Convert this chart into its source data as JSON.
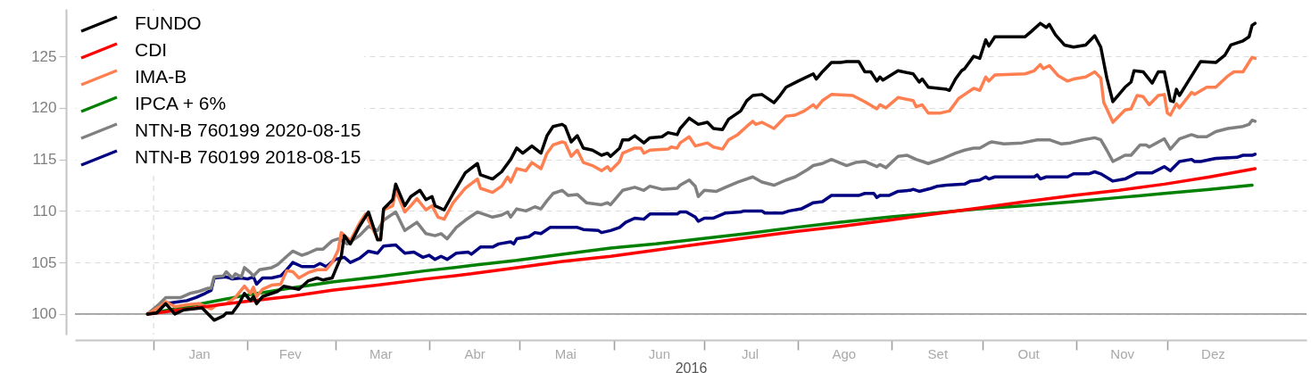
{
  "chart_data": {
    "type": "line",
    "xlabel": "2016",
    "xlim": [
      "2015-12-06",
      "2017-01-16"
    ],
    "xticks": [
      {
        "value": "2016-01-01",
        "label": null
      },
      {
        "value": "2016-01-16",
        "label": "Jan"
      },
      {
        "value": "2016-02-01",
        "label": null
      },
      {
        "value": "2016-02-15",
        "label": "Fev"
      },
      {
        "value": "2016-03-01",
        "label": null
      },
      {
        "value": "2016-03-16",
        "label": "Mar"
      },
      {
        "value": "2016-04-01",
        "label": null
      },
      {
        "value": "2016-04-16",
        "label": "Abr"
      },
      {
        "value": "2016-05-01",
        "label": null
      },
      {
        "value": "2016-05-16",
        "label": "Mai"
      },
      {
        "value": "2016-06-01",
        "label": null
      },
      {
        "value": "2016-06-16",
        "label": "Jun"
      },
      {
        "value": "2016-07-01",
        "label": null
      },
      {
        "value": "2016-07-16",
        "label": "Jul"
      },
      {
        "value": "2016-08-01",
        "label": null
      },
      {
        "value": "2016-08-16",
        "label": "Ago"
      },
      {
        "value": "2016-09-01",
        "label": null
      },
      {
        "value": "2016-09-16",
        "label": "Set"
      },
      {
        "value": "2016-10-01",
        "label": null
      },
      {
        "value": "2016-10-16",
        "label": "Out"
      },
      {
        "value": "2016-11-01",
        "label": null
      },
      {
        "value": "2016-11-16",
        "label": "Nov"
      },
      {
        "value": "2016-12-01",
        "label": null
      },
      {
        "value": "2016-12-16",
        "label": "Dez"
      }
    ],
    "ylim": [
      98,
      129.6
    ],
    "yticks": [
      100,
      105,
      110,
      115,
      120,
      125
    ],
    "grid": "y",
    "legend": "top left",
    "ref_lines": [
      {
        "axis": "y",
        "value": 100,
        "color": "#a0a0a0"
      },
      {
        "axis": "x",
        "value": "2016-01-01",
        "color": "#dddddd",
        "line_style": "dashed"
      }
    ],
    "series": [
      {
        "name": "FUNDO",
        "color": "#000000",
        "x": [
          "2015-12-30",
          "2016-01-02",
          "2016-01-05",
          "2016-01-08",
          "2016-01-11",
          "2016-01-17",
          "2016-01-21",
          "2016-01-24",
          "2016-01-25",
          "2016-01-27",
          "2016-01-29",
          "2016-01-31",
          "2016-02-02",
          "2016-02-03",
          "2016-02-04",
          "2016-02-06",
          "2016-02-11",
          "2016-02-13",
          "2016-02-18",
          "2016-02-21",
          "2016-02-24",
          "2016-02-26",
          "2016-02-29",
          "2016-03-01",
          "2016-03-03",
          "2016-03-04",
          "2016-03-06",
          "2016-03-09",
          "2016-03-12",
          "2016-03-15",
          "2016-03-16",
          "2016-03-17",
          "2016-03-20",
          "2016-03-21",
          "2016-03-24",
          "2016-03-26",
          "2016-03-29",
          "2016-03-31",
          "2016-04-02",
          "2016-04-03",
          "2016-04-06",
          "2016-04-09",
          "2016-04-13",
          "2016-04-17",
          "2016-04-18",
          "2016-04-22",
          "2016-04-25",
          "2016-04-28",
          "2016-04-30",
          "2016-05-02",
          "2016-05-05",
          "2016-05-08",
          "2016-05-10",
          "2016-05-12",
          "2016-05-15",
          "2016-05-16",
          "2016-05-18",
          "2016-05-20",
          "2016-05-22",
          "2016-05-25",
          "2016-05-28",
          "2016-05-30",
          "2016-05-31",
          "2016-06-03",
          "2016-06-04",
          "2016-06-06",
          "2016-06-08",
          "2016-06-11",
          "2016-06-13",
          "2016-06-17",
          "2016-06-19",
          "2016-06-22",
          "2016-06-23",
          "2016-06-26",
          "2016-06-29",
          "2016-07-02",
          "2016-07-04",
          "2016-07-07",
          "2016-07-09",
          "2016-07-13",
          "2016-07-15",
          "2016-07-17",
          "2016-07-20",
          "2016-07-24",
          "2016-07-26",
          "2016-07-28",
          "2016-08-01",
          "2016-08-06",
          "2016-08-07",
          "2016-08-09",
          "2016-08-12",
          "2016-08-15",
          "2016-08-17",
          "2016-08-21",
          "2016-08-23",
          "2016-08-25",
          "2016-08-27",
          "2016-08-28",
          "2016-08-29",
          "2016-09-03",
          "2016-09-08",
          "2016-09-10",
          "2016-09-11",
          "2016-09-13",
          "2016-09-19",
          "2016-09-20",
          "2016-09-22",
          "2016-09-24",
          "2016-09-25",
          "2016-09-28",
          "2016-09-30",
          "2016-10-02",
          "2016-10-03",
          "2016-10-05",
          "2016-10-15",
          "2016-10-17",
          "2016-10-20",
          "2016-10-22",
          "2016-10-23",
          "2016-10-25",
          "2016-10-28",
          "2016-10-31",
          "2016-11-04",
          "2016-11-07",
          "2016-11-09",
          "2016-11-11",
          "2016-11-13",
          "2016-11-17",
          "2016-11-19",
          "2016-11-20",
          "2016-11-23",
          "2016-11-26",
          "2016-11-28",
          "2016-11-30",
          "2016-12-02",
          "2016-12-03",
          "2016-12-04",
          "2016-12-05",
          "2016-12-09",
          "2016-12-12",
          "2016-12-17",
          "2016-12-20",
          "2016-12-22",
          "2016-12-26",
          "2016-12-28",
          "2016-12-29",
          "2016-12-30"
        ],
        "values": [
          100.0,
          100.1,
          101.0,
          100.0,
          100.4,
          100.6,
          99.4,
          99.8,
          100.1,
          100.1,
          100.9,
          102.0,
          101.3,
          101.7,
          101.0,
          101.7,
          102.2,
          102.7,
          102.4,
          103.2,
          103.5,
          103.3,
          103.5,
          104.2,
          105.6,
          107.6,
          106.8,
          108.5,
          109.9,
          107.2,
          107.2,
          110.2,
          111.1,
          112.6,
          110.5,
          111.4,
          112.0,
          111.1,
          111.4,
          110.5,
          110.1,
          111.7,
          113.7,
          114.6,
          113.5,
          113.1,
          113.8,
          115.0,
          116.1,
          115.6,
          116.3,
          115.6,
          117.3,
          118.2,
          118.4,
          118.2,
          116.7,
          117.3,
          116.1,
          115.9,
          115.4,
          115.6,
          115.3,
          116.1,
          116.9,
          116.9,
          117.3,
          116.6,
          117.1,
          117.2,
          117.6,
          117.4,
          118.0,
          119.0,
          118.4,
          118.6,
          118.0,
          117.9,
          118.9,
          119.7,
          120.7,
          121.2,
          121.3,
          120.5,
          121.2,
          122.0,
          122.6,
          123.3,
          122.8,
          123.5,
          124.4,
          124.4,
          124.5,
          124.5,
          123.5,
          123.5,
          122.6,
          123.0,
          122.7,
          123.6,
          123.3,
          122.5,
          122.8,
          122.0,
          121.8,
          121.7,
          122.8,
          123.6,
          123.8,
          125.0,
          124.8,
          126.6,
          126.0,
          126.9,
          126.9,
          127.4,
          128.2,
          127.8,
          128.1,
          127.1,
          126.1,
          125.9,
          126.1,
          127.0,
          125.9,
          122.9,
          120.6,
          122.0,
          122.5,
          123.6,
          123.5,
          122.4,
          123.5,
          123.5,
          120.7,
          120.6,
          121.8,
          121.2,
          123.1,
          124.5,
          124.4,
          125.1,
          126.1,
          126.5,
          126.9,
          128.0,
          128.2
        ]
      },
      {
        "name": "CDI",
        "color": "#ff0000",
        "x": [
          "2015-12-30",
          "2016-01-15",
          "2016-01-31",
          "2016-02-15",
          "2016-02-29",
          "2016-03-15",
          "2016-03-31",
          "2016-04-15",
          "2016-04-30",
          "2016-05-15",
          "2016-05-31",
          "2016-06-15",
          "2016-06-30",
          "2016-07-15",
          "2016-07-31",
          "2016-08-15",
          "2016-08-31",
          "2016-09-15",
          "2016-09-30",
          "2016-10-15",
          "2016-10-31",
          "2016-11-15",
          "2016-11-30",
          "2016-12-15",
          "2016-12-30"
        ],
        "values": [
          100.0,
          100.6,
          101.2,
          101.7,
          102.3,
          102.8,
          103.4,
          103.9,
          104.5,
          105.1,
          105.6,
          106.2,
          106.8,
          107.4,
          108.0,
          108.5,
          109.1,
          109.7,
          110.3,
          110.9,
          111.5,
          112.0,
          112.6,
          113.3,
          114.1
        ]
      },
      {
        "name": "IMA-B",
        "color": "#ff7f50",
        "x": [
          "2015-12-30",
          "2016-01-03",
          "2016-01-05",
          "2016-01-08",
          "2016-01-12",
          "2016-01-16",
          "2016-01-20",
          "2016-01-22",
          "2016-01-25",
          "2016-01-28",
          "2016-01-31",
          "2016-02-02",
          "2016-02-03",
          "2016-02-04",
          "2016-02-06",
          "2016-02-09",
          "2016-02-12",
          "2016-02-14",
          "2016-02-16",
          "2016-02-18",
          "2016-02-21",
          "2016-02-24",
          "2016-02-27",
          "2016-02-29",
          "2016-03-02",
          "2016-03-03",
          "2016-03-06",
          "2016-03-09",
          "2016-03-11",
          "2016-03-15",
          "2016-03-16",
          "2016-03-17",
          "2016-03-20",
          "2016-03-21",
          "2016-03-24",
          "2016-03-26",
          "2016-03-28",
          "2016-03-31",
          "2016-04-02",
          "2016-04-04",
          "2016-04-06",
          "2016-04-09",
          "2016-04-13",
          "2016-04-17",
          "2016-04-18",
          "2016-04-22",
          "2016-04-25",
          "2016-04-27",
          "2016-04-28",
          "2016-04-30",
          "2016-05-03",
          "2016-05-05",
          "2016-05-08",
          "2016-05-10",
          "2016-05-12",
          "2016-05-15",
          "2016-05-16",
          "2016-05-18",
          "2016-05-20",
          "2016-05-22",
          "2016-05-25",
          "2016-05-28",
          "2016-05-30",
          "2016-05-31",
          "2016-06-03",
          "2016-06-04",
          "2016-06-08",
          "2016-06-10",
          "2016-06-11",
          "2016-06-13",
          "2016-06-19",
          "2016-06-20",
          "2016-06-22",
          "2016-06-23",
          "2016-06-26",
          "2016-06-28",
          "2016-07-02",
          "2016-07-04",
          "2016-07-07",
          "2016-07-09",
          "2016-07-12",
          "2016-07-15",
          "2016-07-17",
          "2016-07-18",
          "2016-07-20",
          "2016-07-24",
          "2016-07-26",
          "2016-07-28",
          "2016-07-31",
          "2016-08-03",
          "2016-08-06",
          "2016-08-07",
          "2016-08-09",
          "2016-08-12",
          "2016-08-19",
          "2016-08-23",
          "2016-08-27",
          "2016-08-28",
          "2016-08-30",
          "2016-09-03",
          "2016-09-08",
          "2016-09-09",
          "2016-09-11",
          "2016-09-13",
          "2016-09-17",
          "2016-09-20",
          "2016-09-23",
          "2016-09-25",
          "2016-09-28",
          "2016-09-30",
          "2016-10-02",
          "2016-10-03",
          "2016-10-05",
          "2016-10-15",
          "2016-10-18",
          "2016-10-20",
          "2016-10-21",
          "2016-10-23",
          "2016-10-26",
          "2016-10-29",
          "2016-10-31",
          "2016-11-04",
          "2016-11-07",
          "2016-11-09",
          "2016-11-10",
          "2016-11-11",
          "2016-11-13",
          "2016-11-17",
          "2016-11-19",
          "2016-11-21",
          "2016-11-23",
          "2016-11-25",
          "2016-11-28",
          "2016-11-30",
          "2016-12-01",
          "2016-12-02",
          "2016-12-04",
          "2016-12-05",
          "2016-12-09",
          "2016-12-10",
          "2016-12-14",
          "2016-12-17",
          "2016-12-21",
          "2016-12-23",
          "2016-12-26",
          "2016-12-29",
          "2016-12-30"
        ],
        "values": [
          100.0,
          100.7,
          101.2,
          100.7,
          100.9,
          101.0,
          100.5,
          100.9,
          101.0,
          101.6,
          102.7,
          102.0,
          102.6,
          101.7,
          102.4,
          102.8,
          102.9,
          104.2,
          104.1,
          103.5,
          104.0,
          104.3,
          104.3,
          105.0,
          106.2,
          107.9,
          107.1,
          108.8,
          109.7,
          107.3,
          107.3,
          110.1,
          110.5,
          112.0,
          109.9,
          110.5,
          111.2,
          110.1,
          110.5,
          109.4,
          109.2,
          110.8,
          112.2,
          113.1,
          112.2,
          111.8,
          112.4,
          113.3,
          112.8,
          114.1,
          113.9,
          114.7,
          114.1,
          115.6,
          116.4,
          116.7,
          116.6,
          115.3,
          115.9,
          114.7,
          114.4,
          113.9,
          114.3,
          113.9,
          114.8,
          115.6,
          116.1,
          116.1,
          115.6,
          115.9,
          116.0,
          116.2,
          116.1,
          116.6,
          117.2,
          116.3,
          116.6,
          116.2,
          116.0,
          116.9,
          117.4,
          118.2,
          118.7,
          118.4,
          118.6,
          118.0,
          118.6,
          119.2,
          119.3,
          119.7,
          120.3,
          120.0,
          120.7,
          121.3,
          121.2,
          120.6,
          119.9,
          120.3,
          120.0,
          121.0,
          120.7,
          120.1,
          120.3,
          119.5,
          119.5,
          119.7,
          120.9,
          121.3,
          121.9,
          121.7,
          123.0,
          122.6,
          123.2,
          123.3,
          123.6,
          124.2,
          123.8,
          124.1,
          123.1,
          122.6,
          122.8,
          123.0,
          123.5,
          122.9,
          120.5,
          119.9,
          118.6,
          119.8,
          119.9,
          121.2,
          121.1,
          120.3,
          121.2,
          121.3,
          119.5,
          119.3,
          120.4,
          120.0,
          121.5,
          121.3,
          122.0,
          122.0,
          123.1,
          123.5,
          123.5,
          124.9,
          124.8
        ]
      },
      {
        "name": "IPCA + 6%",
        "color": "#008000",
        "x": [
          "2015-12-30",
          "2016-01-15",
          "2016-01-31",
          "2016-02-15",
          "2016-02-29",
          "2016-03-15",
          "2016-03-31",
          "2016-04-15",
          "2016-04-30",
          "2016-05-15",
          "2016-05-31",
          "2016-06-15",
          "2016-06-30",
          "2016-07-15",
          "2016-07-31",
          "2016-08-15",
          "2016-08-31",
          "2016-09-15",
          "2016-09-30",
          "2016-10-15",
          "2016-10-31",
          "2016-11-15",
          "2016-11-30",
          "2016-12-15",
          "2016-12-29"
        ],
        "values": [
          100.0,
          100.9,
          101.8,
          102.5,
          103.1,
          103.6,
          104.2,
          104.7,
          105.2,
          105.8,
          106.4,
          106.8,
          107.3,
          107.8,
          108.4,
          108.9,
          109.4,
          109.8,
          110.2,
          110.5,
          110.9,
          111.3,
          111.7,
          112.1,
          112.5
        ]
      },
      {
        "name": "NTN-B 760199 2020-08-15",
        "color": "#808080",
        "x": [
          "2015-12-30",
          "2016-01-03",
          "2016-01-05",
          "2016-01-10",
          "2016-01-13",
          "2016-01-16",
          "2016-01-19",
          "2016-01-20",
          "2016-01-21",
          "2016-01-24",
          "2016-01-25",
          "2016-01-27",
          "2016-01-28",
          "2016-01-30",
          "2016-01-31",
          "2016-02-02",
          "2016-02-03",
          "2016-02-05",
          "2016-02-09",
          "2016-02-11",
          "2016-02-14",
          "2016-02-16",
          "2016-02-19",
          "2016-02-21",
          "2016-02-24",
          "2016-02-26",
          "2016-02-29",
          "2016-03-02",
          "2016-03-05",
          "2016-03-09",
          "2016-03-12",
          "2016-03-15",
          "2016-03-17",
          "2016-03-21",
          "2016-03-24",
          "2016-03-28",
          "2016-03-31",
          "2016-04-03",
          "2016-04-05",
          "2016-04-07",
          "2016-04-10",
          "2016-04-13",
          "2016-04-17",
          "2016-04-22",
          "2016-04-25",
          "2016-04-27",
          "2016-04-28",
          "2016-04-30",
          "2016-05-03",
          "2016-05-06",
          "2016-05-08",
          "2016-05-10",
          "2016-05-12",
          "2016-05-15",
          "2016-05-17",
          "2016-05-20",
          "2016-05-23",
          "2016-05-28",
          "2016-05-30",
          "2016-05-31",
          "2016-06-04",
          "2016-06-08",
          "2016-06-11",
          "2016-06-13",
          "2016-06-17",
          "2016-06-22",
          "2016-06-23",
          "2016-06-26",
          "2016-06-28",
          "2016-06-29",
          "2016-07-01",
          "2016-07-05",
          "2016-07-08",
          "2016-07-12",
          "2016-07-17",
          "2016-07-20",
          "2016-07-24",
          "2016-07-28",
          "2016-07-31",
          "2016-08-04",
          "2016-08-06",
          "2016-08-09",
          "2016-08-12",
          "2016-08-17",
          "2016-08-20",
          "2016-08-23",
          "2016-08-27",
          "2016-08-28",
          "2016-08-30",
          "2016-09-03",
          "2016-09-06",
          "2016-09-09",
          "2016-09-13",
          "2016-09-18",
          "2016-09-22",
          "2016-09-25",
          "2016-09-28",
          "2016-09-30",
          "2016-10-03",
          "2016-10-04",
          "2016-10-08",
          "2016-10-14",
          "2016-10-19",
          "2016-10-23",
          "2016-10-27",
          "2016-10-30",
          "2016-11-03",
          "2016-11-07",
          "2016-11-09",
          "2016-11-11",
          "2016-11-13",
          "2016-11-17",
          "2016-11-19",
          "2016-11-22",
          "2016-11-24",
          "2016-11-25",
          "2016-11-30",
          "2016-12-02",
          "2016-12-05",
          "2016-12-09",
          "2016-12-11",
          "2016-12-14",
          "2016-12-17",
          "2016-12-21",
          "2016-12-26",
          "2016-12-28",
          "2016-12-29",
          "2016-12-30"
        ],
        "values": [
          100.0,
          101.0,
          101.6,
          101.6,
          102.0,
          102.2,
          102.5,
          102.5,
          103.6,
          103.7,
          104.1,
          103.5,
          103.9,
          103.6,
          104.5,
          104.0,
          103.7,
          104.3,
          104.5,
          104.8,
          105.6,
          106.1,
          105.7,
          105.9,
          106.3,
          106.3,
          107.1,
          107.3,
          106.8,
          107.6,
          108.5,
          108.1,
          109.1,
          109.9,
          108.1,
          108.9,
          107.8,
          107.6,
          107.8,
          107.3,
          108.4,
          109.1,
          109.9,
          109.4,
          109.6,
          109.9,
          109.4,
          110.2,
          110.0,
          110.4,
          110.2,
          111.0,
          111.7,
          112.0,
          111.5,
          111.6,
          110.8,
          110.6,
          110.8,
          110.6,
          112.0,
          112.3,
          112.0,
          112.4,
          112.1,
          112.2,
          112.5,
          113.0,
          112.4,
          111.4,
          112.0,
          111.9,
          112.3,
          112.8,
          113.3,
          112.8,
          112.5,
          113.0,
          113.3,
          114.0,
          114.4,
          114.6,
          115.0,
          114.4,
          114.7,
          114.8,
          114.3,
          114.5,
          114.2,
          115.3,
          115.4,
          115.0,
          114.6,
          115.1,
          115.6,
          115.9,
          116.1,
          116.1,
          116.6,
          116.7,
          116.5,
          116.6,
          116.9,
          116.9,
          116.5,
          116.6,
          116.9,
          117.1,
          116.9,
          115.9,
          114.8,
          115.4,
          115.4,
          116.4,
          116.4,
          116.2,
          117.0,
          116.0,
          117.0,
          117.4,
          117.2,
          117.2,
          117.7,
          118.0,
          118.2,
          118.4,
          118.8,
          118.7
        ]
      },
      {
        "name": "NTN-B 760199 2018-08-15",
        "color": "#000080",
        "x": [
          "2015-12-30",
          "2016-01-04",
          "2016-01-07",
          "2016-01-12",
          "2016-01-15",
          "2016-01-18",
          "2016-01-20",
          "2016-01-21",
          "2016-01-25",
          "2016-01-27",
          "2016-01-30",
          "2016-02-01",
          "2016-02-03",
          "2016-02-04",
          "2016-02-06",
          "2016-02-09",
          "2016-02-12",
          "2016-02-14",
          "2016-02-16",
          "2016-02-19",
          "2016-02-23",
          "2016-02-25",
          "2016-02-27",
          "2016-03-01",
          "2016-03-04",
          "2016-03-06",
          "2016-03-09",
          "2016-03-12",
          "2016-03-15",
          "2016-03-17",
          "2016-03-21",
          "2016-03-24",
          "2016-03-27",
          "2016-03-30",
          "2016-04-01",
          "2016-04-03",
          "2016-04-05",
          "2016-04-07",
          "2016-04-10",
          "2016-04-14",
          "2016-04-15",
          "2016-04-18",
          "2016-04-22",
          "2016-04-24",
          "2016-04-28",
          "2016-04-29",
          "2016-04-30",
          "2016-05-04",
          "2016-05-06",
          "2016-05-08",
          "2016-05-11",
          "2016-05-20",
          "2016-05-22",
          "2016-05-27",
          "2016-05-28",
          "2016-05-31",
          "2016-06-03",
          "2016-06-05",
          "2016-06-08",
          "2016-06-11",
          "2016-06-13",
          "2016-06-22",
          "2016-06-23",
          "2016-06-25",
          "2016-06-28",
          "2016-06-29",
          "2016-07-01",
          "2016-07-04",
          "2016-07-08",
          "2016-07-13",
          "2016-07-14",
          "2016-07-20",
          "2016-07-21",
          "2016-07-27",
          "2016-07-29",
          "2016-08-02",
          "2016-08-06",
          "2016-08-09",
          "2016-08-12",
          "2016-08-21",
          "2016-08-23",
          "2016-08-26",
          "2016-08-27",
          "2016-08-28",
          "2016-08-31",
          "2016-09-03",
          "2016-09-07",
          "2016-09-08",
          "2016-09-10",
          "2016-09-14",
          "2016-09-16",
          "2016-09-19",
          "2016-09-25",
          "2016-09-27",
          "2016-09-30",
          "2016-10-02",
          "2016-10-03",
          "2016-10-05",
          "2016-10-18",
          "2016-10-19",
          "2016-10-20",
          "2016-10-22",
          "2016-10-29",
          "2016-10-31",
          "2016-11-05",
          "2016-11-07",
          "2016-11-09",
          "2016-11-13",
          "2016-11-17",
          "2016-11-21",
          "2016-11-26",
          "2016-11-30",
          "2016-12-02",
          "2016-12-05",
          "2016-12-09",
          "2016-12-10",
          "2016-12-12",
          "2016-12-17",
          "2016-12-24",
          "2016-12-26",
          "2016-12-29",
          "2016-12-30"
        ],
        "values": [
          100.0,
          101.0,
          101.1,
          101.3,
          101.6,
          102.0,
          102.3,
          103.5,
          103.6,
          103.4,
          103.5,
          103.4,
          103.6,
          102.9,
          103.5,
          103.5,
          103.7,
          104.3,
          105.0,
          104.6,
          104.6,
          104.9,
          104.6,
          105.3,
          105.5,
          105.0,
          105.4,
          106.1,
          105.9,
          106.6,
          106.7,
          105.9,
          106.0,
          105.5,
          105.7,
          105.3,
          105.6,
          105.3,
          105.9,
          106.0,
          105.8,
          106.5,
          106.5,
          106.8,
          107.0,
          106.8,
          107.3,
          107.5,
          107.9,
          107.8,
          108.4,
          108.4,
          108.2,
          108.1,
          107.9,
          108.1,
          108.4,
          108.9,
          109.3,
          109.2,
          109.7,
          109.7,
          109.9,
          109.9,
          109.4,
          109.0,
          109.3,
          109.3,
          109.8,
          109.9,
          110.0,
          110.0,
          109.8,
          109.8,
          110.0,
          110.2,
          110.8,
          110.9,
          111.5,
          111.5,
          111.7,
          111.7,
          111.3,
          111.5,
          111.5,
          111.9,
          112.0,
          112.1,
          111.9,
          112.2,
          112.4,
          112.5,
          112.6,
          112.9,
          113.0,
          113.3,
          113.1,
          113.3,
          113.3,
          113.5,
          113.1,
          113.3,
          113.3,
          113.6,
          113.6,
          113.8,
          113.6,
          112.9,
          113.1,
          113.7,
          113.7,
          114.3,
          113.9,
          114.8,
          115.0,
          114.8,
          114.8,
          115.1,
          115.2,
          115.4,
          115.4,
          115.5
        ]
      }
    ]
  }
}
